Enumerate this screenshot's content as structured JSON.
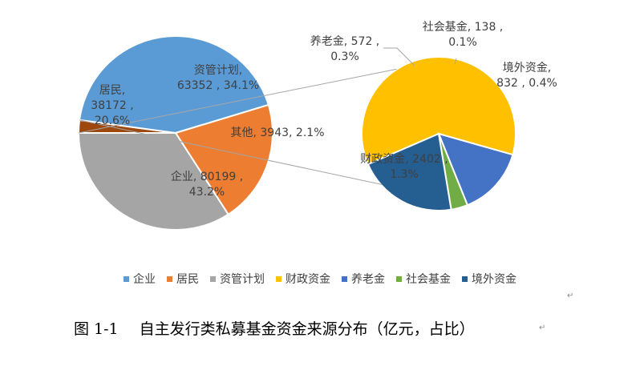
{
  "chart_data": [
    {
      "type": "pie",
      "slices": [
        {
          "name": "企业",
          "value": 80199,
          "percent": "43.2%",
          "color": "#5B9BD5"
        },
        {
          "name": "居民",
          "value": 38172,
          "percent": "20.6%",
          "color": "#ED7D31"
        },
        {
          "name": "资管计划",
          "value": 63352,
          "percent": "34.1%",
          "color": "#A5A5A5"
        },
        {
          "name": "其他",
          "value": 3943,
          "percent": "2.1%",
          "color": "#9E480E"
        }
      ]
    },
    {
      "type": "pie",
      "slices": [
        {
          "name": "财政资金",
          "value": 2402,
          "percent": "1.3%",
          "color": "#FFC000"
        },
        {
          "name": "养老金",
          "value": 572,
          "percent": "0.3%",
          "color": "#4472C4"
        },
        {
          "name": "社会基金",
          "value": 138,
          "percent": "0.1%",
          "color": "#70AD47"
        },
        {
          "name": "境外资金",
          "value": 832,
          "percent": "0.4%",
          "color": "#255E91"
        }
      ]
    }
  ],
  "labels": {
    "main": [
      {
        "lines": [
          "资管计划,",
          "63352 , 34.1%"
        ]
      },
      {
        "lines": [
          "居民,",
          "38172 ,",
          "20.6%"
        ]
      },
      {
        "lines": [
          "企业, 80199 ,",
          "43.2%"
        ]
      },
      {
        "lines": [
          "其他, 3943, 2.1%"
        ]
      }
    ],
    "detail": [
      {
        "lines": [
          "养老金, 572 ,",
          "0.3%"
        ]
      },
      {
        "lines": [
          "社会基金, 138 ,",
          "0.1%"
        ]
      },
      {
        "lines": [
          "境外资金,",
          "832 , 0.4%"
        ]
      },
      {
        "lines": [
          "财政资金, 2402 ,",
          "1.3%"
        ]
      }
    ]
  },
  "legend": [
    {
      "name": "企业",
      "color": "#5B9BD5"
    },
    {
      "name": "居民",
      "color": "#ED7D31"
    },
    {
      "name": "资管计划",
      "color": "#A5A5A5"
    },
    {
      "name": "财政资金",
      "color": "#FFC000"
    },
    {
      "name": "养老金",
      "color": "#4472C4"
    },
    {
      "name": "社会基金",
      "color": "#70AD47"
    },
    {
      "name": "境外资金",
      "color": "#255E91"
    }
  ],
  "caption": {
    "number": "图 1-1",
    "text": "自主发行类私募基金资金来源分布（亿元，占比）"
  },
  "marks": {
    "paragraph": "↵"
  }
}
